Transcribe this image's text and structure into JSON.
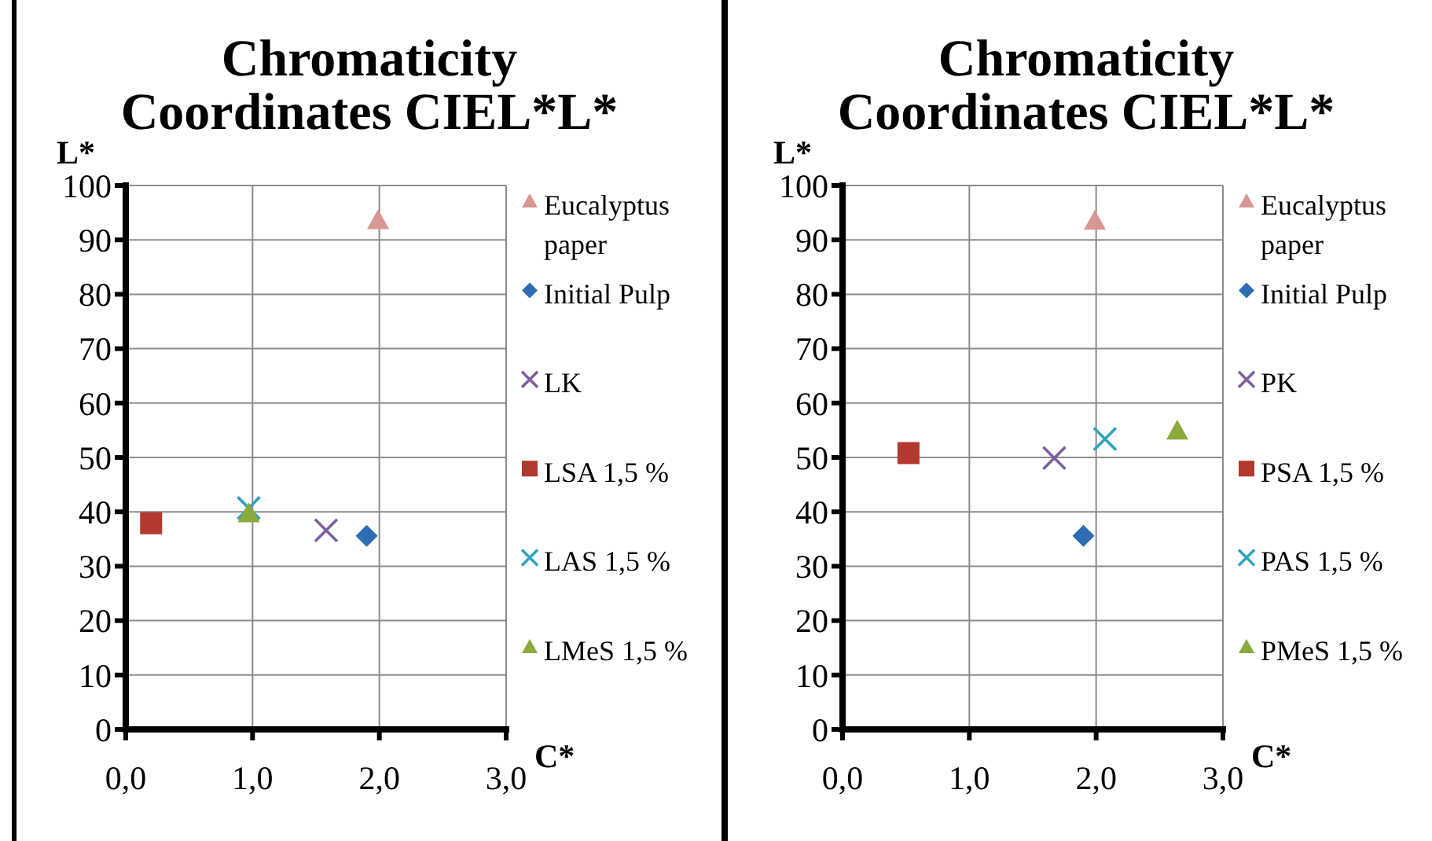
{
  "chart_data": [
    {
      "type": "scatter",
      "title": "Chromaticity Coordinates CIEL*L*",
      "xlabel": "C*",
      "ylabel": "L*",
      "xlim": [
        0,
        3
      ],
      "xticks": [
        {
          "value": 0,
          "label": "0,0"
        },
        {
          "value": 1,
          "label": "1,0"
        },
        {
          "value": 2,
          "label": "2,0"
        },
        {
          "value": 3,
          "label": "3,0"
        }
      ],
      "ylim": [
        0,
        100
      ],
      "yticks": [
        0,
        10,
        20,
        30,
        40,
        50,
        60,
        70,
        80,
        90,
        100
      ],
      "grid": true,
      "legend": "right",
      "series": [
        {
          "name": "Eucalyptus paper",
          "color": "#d99694",
          "marker": "triangle",
          "x": [
            1.99
          ],
          "values": [
            93.6
          ]
        },
        {
          "name": "Initial Pulp",
          "color": "#2e6db4",
          "marker": "diamond",
          "x": [
            1.9
          ],
          "values": [
            35.6
          ]
        },
        {
          "name": "LK",
          "color": "#7d5fa0",
          "marker": "cross",
          "x": [
            1.58
          ],
          "values": [
            36.6
          ]
        },
        {
          "name": "LSA 1,5 %",
          "color": "#b3382f",
          "marker": "square",
          "x": [
            0.2
          ],
          "values": [
            37.9
          ]
        },
        {
          "name": "LAS 1,5 %",
          "color": "#31a2bd",
          "marker": "cross",
          "x": [
            0.97
          ],
          "values": [
            40.7
          ]
        },
        {
          "name": "LMeS 1,5 %",
          "color": "#8aab3c",
          "marker": "triangle",
          "x": [
            0.97
          ],
          "values": [
            39.7
          ]
        }
      ]
    },
    {
      "type": "scatter",
      "title": "Chromaticity Coordinates CIEL*L*",
      "xlabel": "C*",
      "ylabel": "L*",
      "xlim": [
        0,
        3
      ],
      "xticks": [
        {
          "value": 0,
          "label": "0,0"
        },
        {
          "value": 1,
          "label": "1,0"
        },
        {
          "value": 2,
          "label": "2,0"
        },
        {
          "value": 3,
          "label": "3,0"
        }
      ],
      "ylim": [
        0,
        100
      ],
      "yticks": [
        0,
        10,
        20,
        30,
        40,
        50,
        60,
        70,
        80,
        90,
        100
      ],
      "grid": true,
      "legend": "right",
      "series": [
        {
          "name": "Eucalyptus paper",
          "color": "#d99694",
          "marker": "triangle",
          "x": [
            1.99
          ],
          "values": [
            93.5
          ]
        },
        {
          "name": "Initial Pulp",
          "color": "#2e6db4",
          "marker": "diamond",
          "x": [
            1.9
          ],
          "values": [
            35.6
          ]
        },
        {
          "name": "PK",
          "color": "#7d5fa0",
          "marker": "cross",
          "x": [
            1.67
          ],
          "values": [
            49.9
          ]
        },
        {
          "name": "PSA 1,5 %",
          "color": "#b3382f",
          "marker": "square",
          "x": [
            0.52
          ],
          "values": [
            50.8
          ]
        },
        {
          "name": "PAS 1,5 %",
          "color": "#31a2bd",
          "marker": "cross",
          "x": [
            2.07
          ],
          "values": [
            53.4
          ]
        },
        {
          "name": "PMeS 1,5 %",
          "color": "#8aab3c",
          "marker": "triangle",
          "x": [
            2.64
          ],
          "values": [
            54.9
          ]
        }
      ]
    }
  ]
}
